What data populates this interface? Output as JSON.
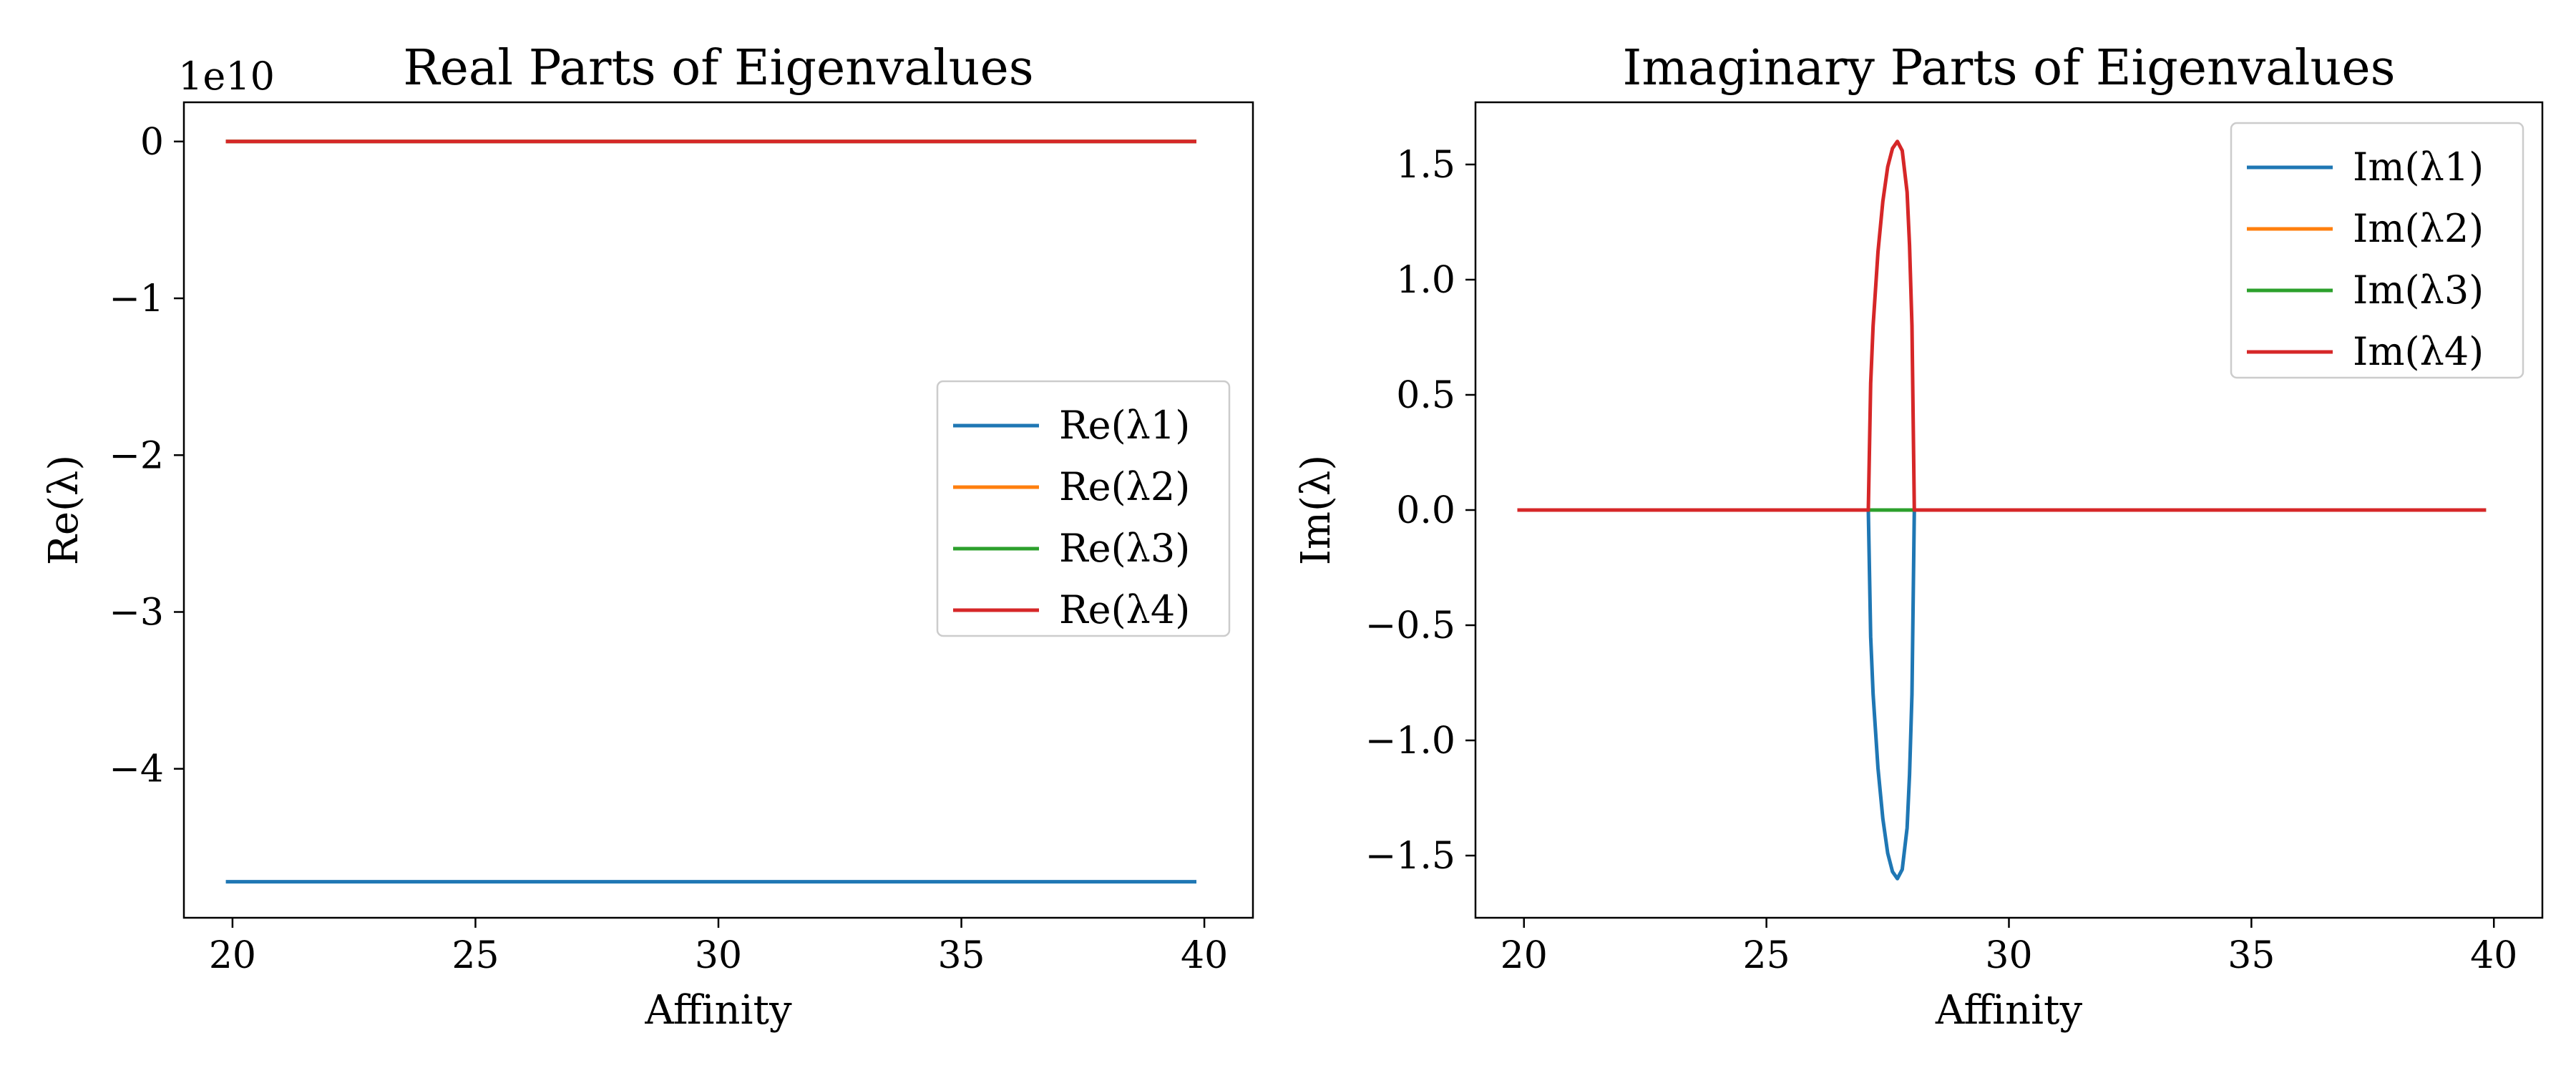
{
  "chart_data": [
    {
      "type": "line",
      "title": "Real Parts of Eigenvalues",
      "xlabel": "Affinity",
      "ylabel": "Re(λ)",
      "y_offset_label": "1e10",
      "xlim": [
        19,
        41
      ],
      "ylim": [
        -4.95,
        0.25
      ],
      "xticks": [
        20,
        25,
        30,
        35,
        40
      ],
      "xtick_labels": [
        "20",
        "25",
        "30",
        "35",
        "40"
      ],
      "yticks": [
        0,
        -1,
        -2,
        -3,
        -4
      ],
      "ytick_labels": [
        "0",
        "−1",
        "−2",
        "−3",
        "−4"
      ],
      "grid": false,
      "legend_position": "center-right",
      "series": [
        {
          "name": "Re(λ1)",
          "color": "#1f77b4",
          "x": [
            19.9,
            39.8
          ],
          "y": [
            -4.72,
            -4.72
          ]
        },
        {
          "name": "Re(λ2)",
          "color": "#ff7f0e",
          "x": [
            19.9,
            39.8
          ],
          "y": [
            0,
            0
          ]
        },
        {
          "name": "Re(λ3)",
          "color": "#2ca02c",
          "x": [
            19.9,
            39.8
          ],
          "y": [
            0,
            0
          ]
        },
        {
          "name": "Re(λ4)",
          "color": "#d62728",
          "x": [
            19.9,
            39.8
          ],
          "y": [
            0,
            0
          ]
        }
      ]
    },
    {
      "type": "line",
      "title": "Imaginary Parts of Eigenvalues",
      "xlabel": "Affinity",
      "ylabel": "Im(λ)",
      "y_offset_label": "",
      "xlim": [
        19,
        41
      ],
      "ylim": [
        -1.77,
        1.77
      ],
      "xticks": [
        20,
        25,
        30,
        35,
        40
      ],
      "xtick_labels": [
        "20",
        "25",
        "30",
        "35",
        "40"
      ],
      "yticks": [
        1.5,
        1.0,
        0.5,
        0.0,
        -0.5,
        -1.0,
        -1.5
      ],
      "ytick_labels": [
        "1.5",
        "1.0",
        "0.5",
        "0.0",
        "−0.5",
        "−1.0",
        "−1.5"
      ],
      "grid": false,
      "legend_position": "top-right",
      "series": [
        {
          "name": "Im(λ1)",
          "color": "#1f77b4",
          "x": [
            19.9,
            27.1,
            27.15,
            27.2,
            27.3,
            27.4,
            27.5,
            27.6,
            27.7,
            27.8,
            27.9,
            27.95,
            28.0,
            28.05,
            39.8
          ],
          "y": [
            0,
            0,
            -0.55,
            -0.8,
            -1.12,
            -1.34,
            -1.49,
            -1.57,
            -1.6,
            -1.56,
            -1.38,
            -1.15,
            -0.8,
            0,
            0
          ]
        },
        {
          "name": "Im(λ2)",
          "color": "#ff7f0e",
          "x": [
            19.9,
            39.8
          ],
          "y": [
            0,
            0
          ]
        },
        {
          "name": "Im(λ3)",
          "color": "#2ca02c",
          "x": [
            19.9,
            39.8
          ],
          "y": [
            0,
            0
          ]
        },
        {
          "name": "Im(λ4)",
          "color": "#d62728",
          "x": [
            19.9,
            27.1,
            27.15,
            27.2,
            27.3,
            27.4,
            27.5,
            27.6,
            27.7,
            27.8,
            27.9,
            27.95,
            28.0,
            28.05,
            39.8
          ],
          "y": [
            0,
            0,
            0.55,
            0.8,
            1.12,
            1.34,
            1.49,
            1.57,
            1.6,
            1.56,
            1.38,
            1.15,
            0.8,
            0,
            0
          ]
        }
      ]
    }
  ]
}
